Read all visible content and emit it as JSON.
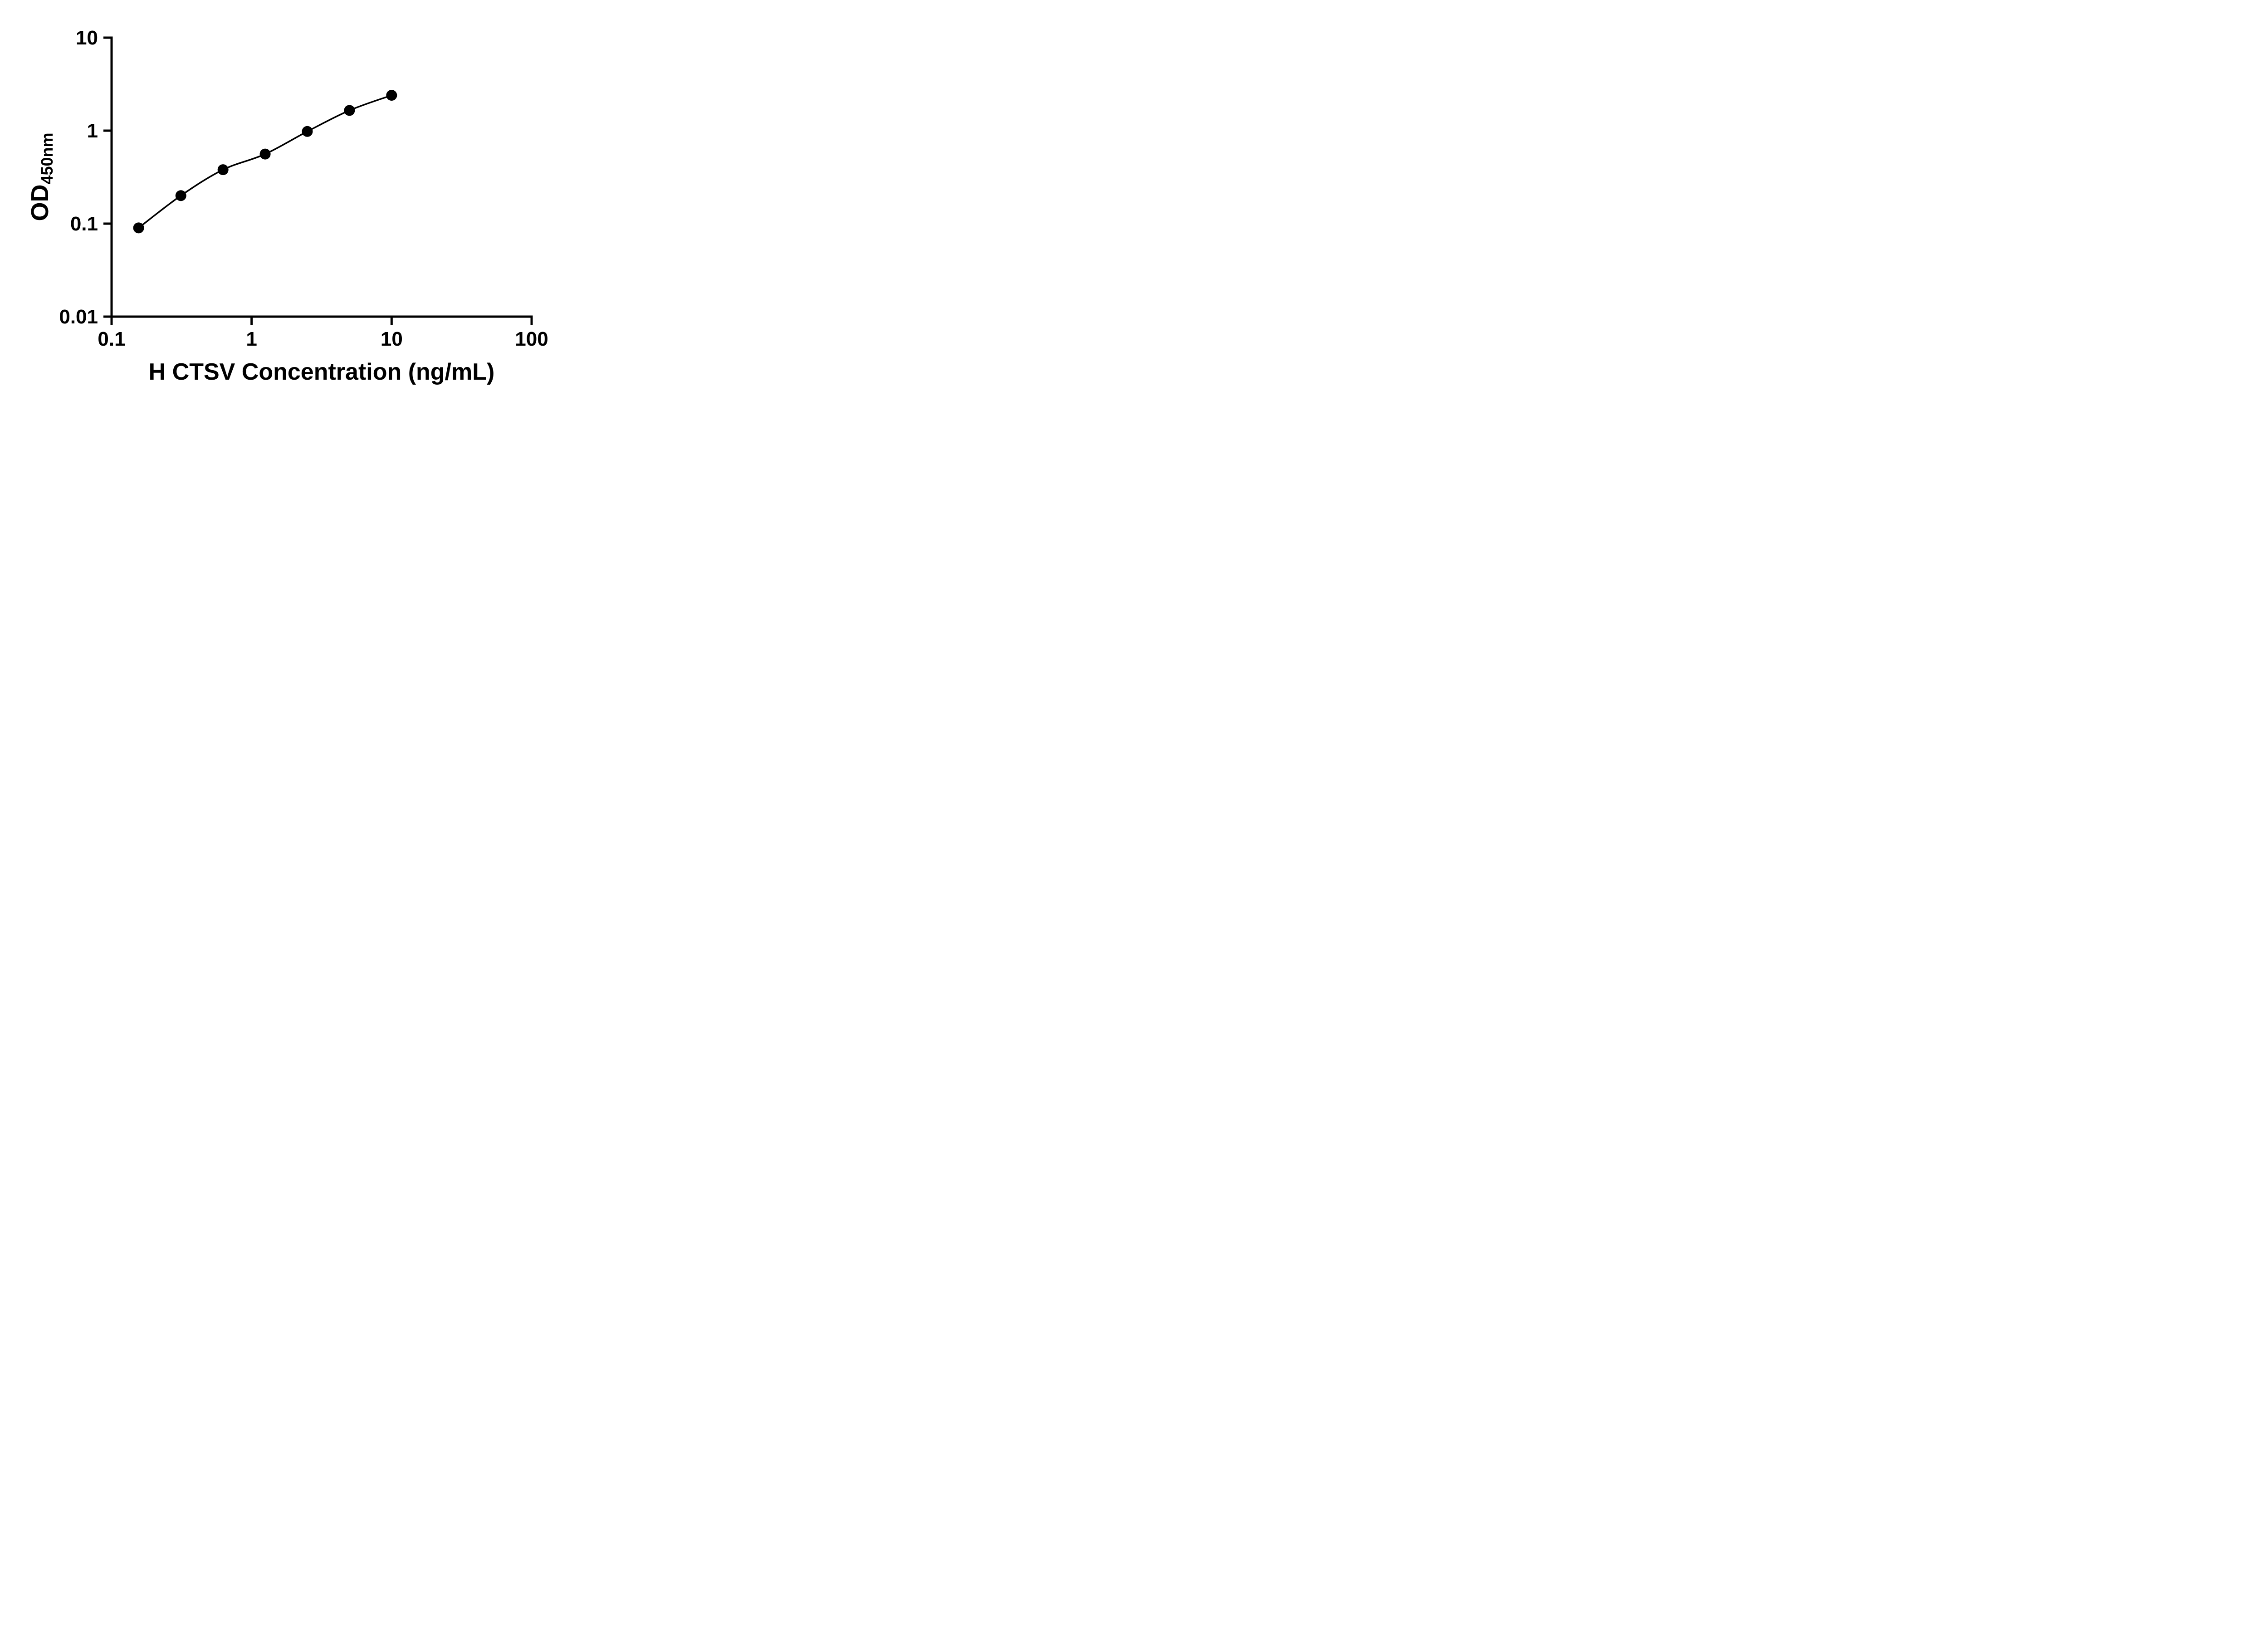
{
  "chart_data": {
    "type": "scatter",
    "title": "",
    "xlabel": "H CTSV Concentration (ng/mL)",
    "ylabel_main": "OD",
    "ylabel_sub": "450nm",
    "x_scale": "log",
    "y_scale": "log",
    "xlim": [
      0.1,
      100
    ],
    "ylim": [
      0.01,
      10
    ],
    "x_ticks": [
      "0.1",
      "1",
      "10",
      "100"
    ],
    "x_tick_values": [
      0.1,
      1,
      10,
      100
    ],
    "y_ticks": [
      "0.01",
      "0.1",
      "1",
      "10"
    ],
    "y_tick_values": [
      0.01,
      0.1,
      1,
      10
    ],
    "points": {
      "x": [
        0.156,
        0.3125,
        0.625,
        1.25,
        2.5,
        5,
        10
      ],
      "y": [
        0.09,
        0.2,
        0.38,
        0.56,
        0.98,
        1.65,
        2.4
      ]
    },
    "fit_line": true,
    "grid": false,
    "legend": "none",
    "marker_color": "#000000",
    "line_color": "#000000",
    "axis_color": "#000000",
    "background_color": "#ffffff"
  }
}
